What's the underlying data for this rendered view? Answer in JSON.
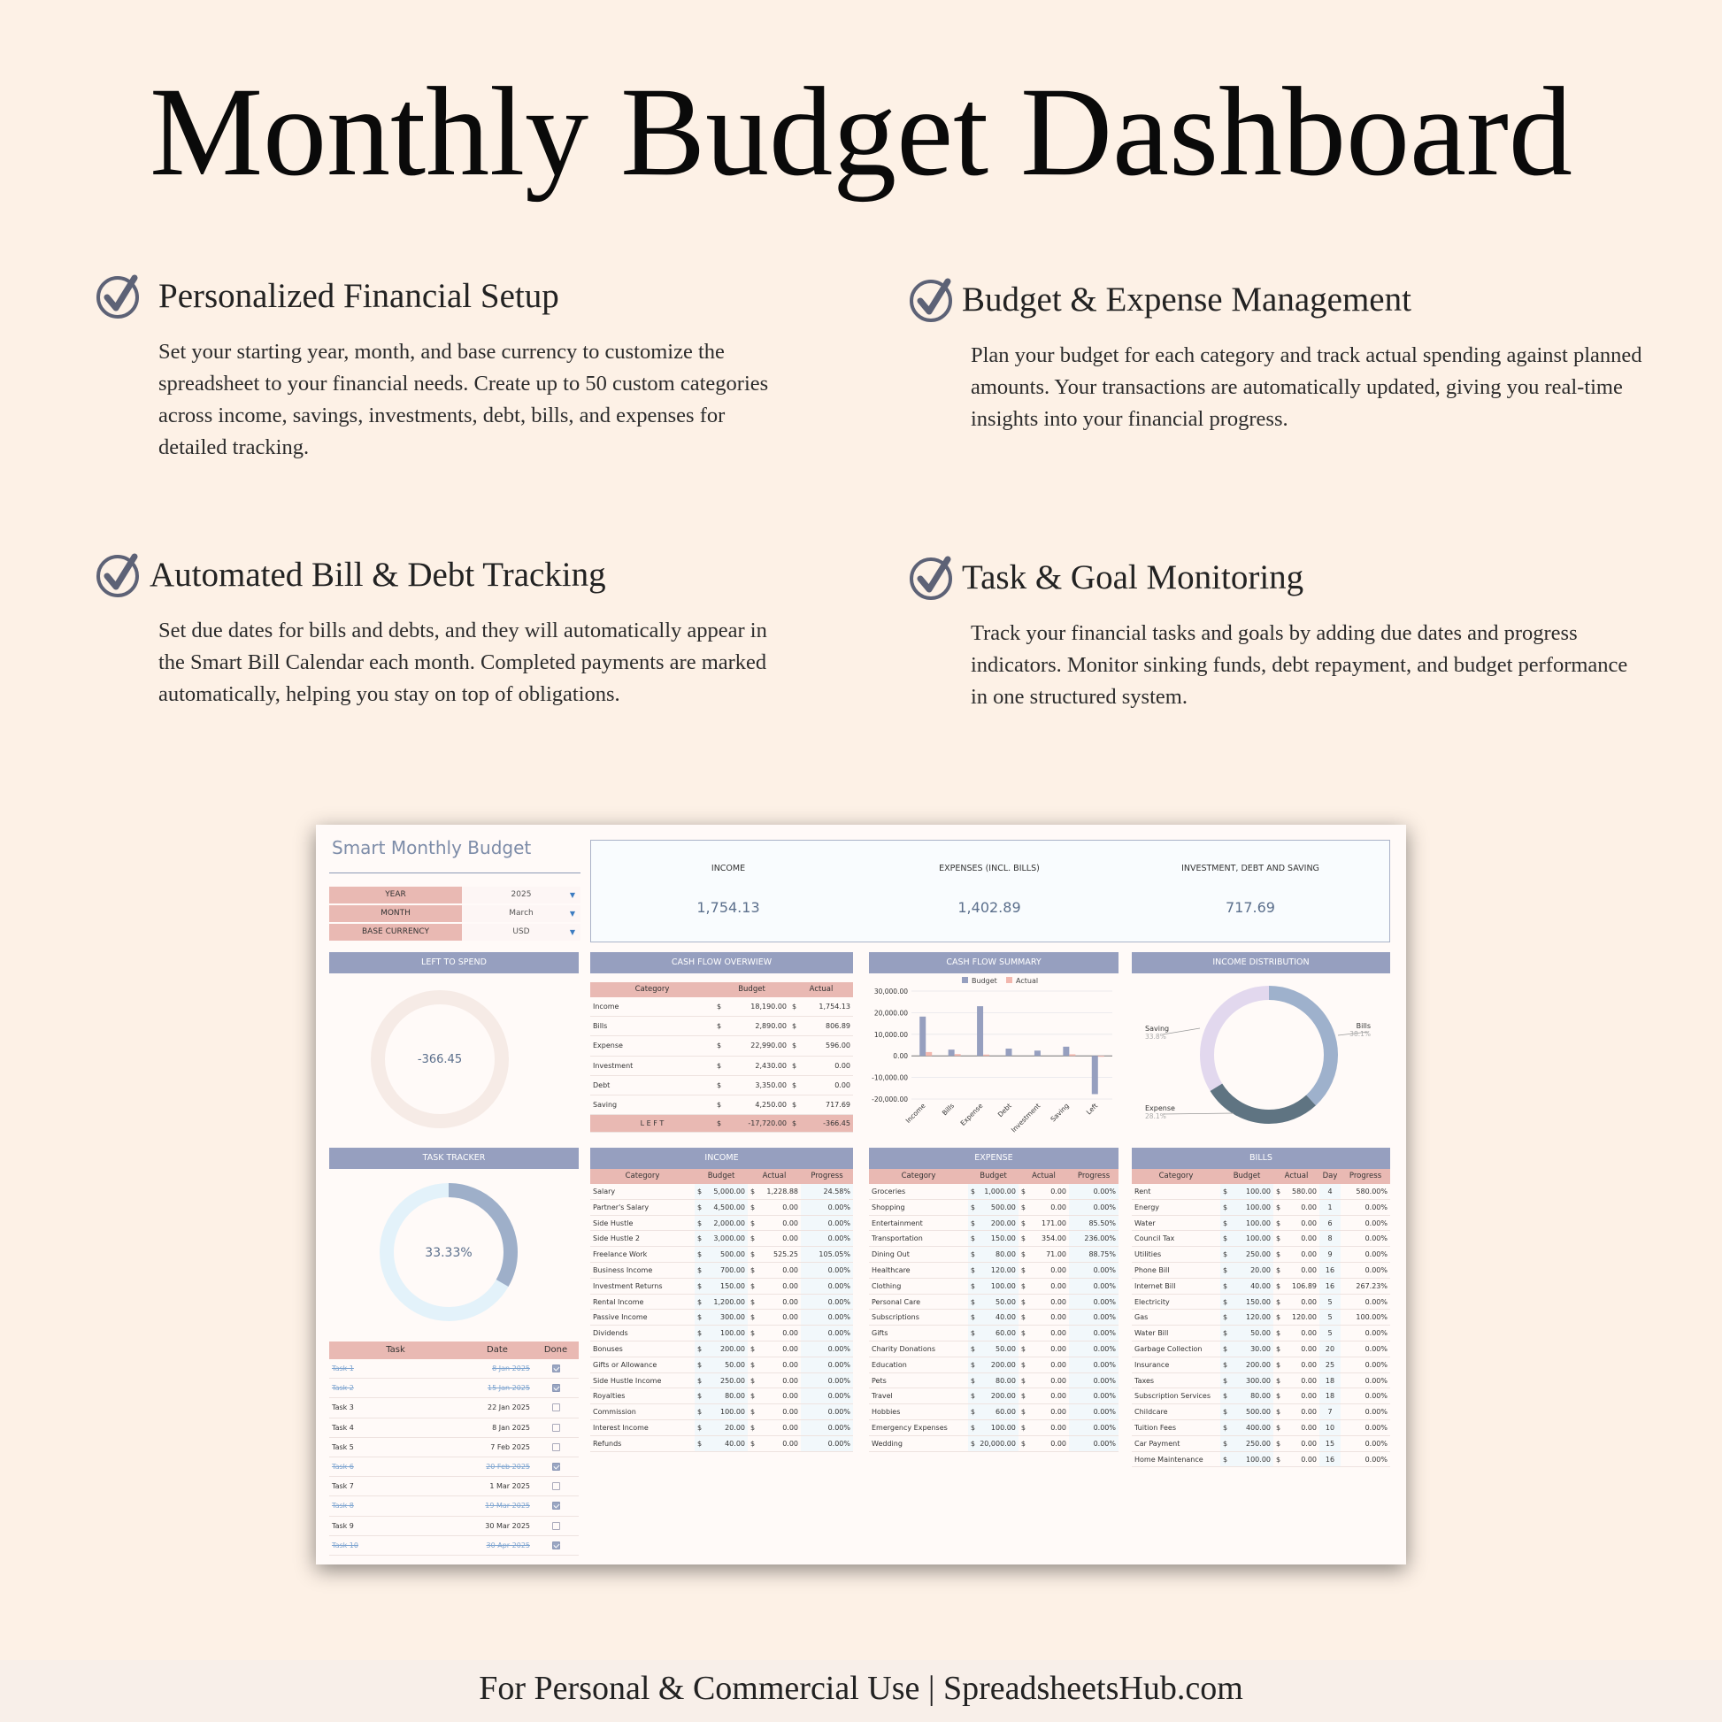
{
  "page": {
    "title": "Monthly Budget Dashboard",
    "footer": "For Personal & Commercial Use  |  SpreadsheetsHub.com"
  },
  "features": [
    {
      "title": "Personalized Financial Setup",
      "text": "Set your starting year, month, and base currency to customize the spreadsheet to your financial needs. Create up to 50 custom categories across income, savings, investments, debt, bills, and expenses for detailed tracking."
    },
    {
      "title": "Budget & Expense Management",
      "text": "Plan your budget for each category and track actual spending against planned amounts. Your transactions are automatically updated, giving you real-time insights into your financial progress."
    },
    {
      "title": "Automated Bill & Debt Tracking",
      "text": "Set due dates for bills and debts, and they will automatically appear in the Smart Bill Calendar each month. Completed payments are marked automatically, helping you stay on top of obligations."
    },
    {
      "title": "Task & Goal Monitoring",
      "text": "Track your financial tasks and goals by adding due dates and progress indicators. Monitor sinking funds, debt repayment, and budget performance in one structured system."
    }
  ],
  "dashboard": {
    "title": "Smart Monthly Budget",
    "settings": [
      {
        "label": "YEAR",
        "value": "2025"
      },
      {
        "label": "MONTH",
        "value": "March"
      },
      {
        "label": "BASE  CURRENCY",
        "value": "USD"
      }
    ],
    "kpis": [
      {
        "label": "INCOME",
        "value": "1,754.13"
      },
      {
        "label": "EXPENSES (INCL. BILLS)",
        "value": "1,402.89"
      },
      {
        "label": "INVESTMENT, DEBT AND SAVING",
        "value": "717.69"
      }
    ],
    "colors": {
      "header": "#969fbf",
      "pink": "#e9b9b3",
      "accent": "#5b6f8c",
      "ring_dark": "#5f7482",
      "ring_light": "#9eb1cc",
      "ring_lavender": "#e2d8ee"
    },
    "left_to_spend": {
      "header": "LEFT TO SPEND",
      "value": "-366.45"
    },
    "task_tracker": {
      "header": "TASK TRACKER",
      "percent_label": "33.33%",
      "percent": 33.33,
      "columns": [
        "Task",
        "Date",
        "Done"
      ],
      "rows": [
        {
          "task": "Task 1",
          "date": "8 Jan 2025",
          "done": true
        },
        {
          "task": "Task 2",
          "date": "15 Jan 2025",
          "done": true
        },
        {
          "task": "Task 3",
          "date": "22 Jan 2025",
          "done": false
        },
        {
          "task": "Task 4",
          "date": "8 Jan 2025",
          "done": false
        },
        {
          "task": "Task 5",
          "date": "7 Feb 2025",
          "done": false
        },
        {
          "task": "Task 6",
          "date": "20 Feb 2025",
          "done": true
        },
        {
          "task": "Task 7",
          "date": "1 Mar 2025",
          "done": false
        },
        {
          "task": "Task 8",
          "date": "19 Mar 2025",
          "done": true
        },
        {
          "task": "Task 9",
          "date": "30 Mar 2025",
          "done": false
        },
        {
          "task": "Task 10",
          "date": "30 Apr 2025",
          "done": true
        }
      ]
    },
    "cash_flow_overview": {
      "header": "CASH FLOW OVERWIEW",
      "columns": [
        "Category",
        "Budget",
        "Actual"
      ],
      "rows": [
        {
          "category": "Income",
          "budget": "18,190.00",
          "actual": "1,754.13"
        },
        {
          "category": "Bills",
          "budget": "2,890.00",
          "actual": "806.89"
        },
        {
          "category": "Expense",
          "budget": "22,990.00",
          "actual": "596.00"
        },
        {
          "category": "Investment",
          "budget": "2,430.00",
          "actual": "0.00"
        },
        {
          "category": "Debt",
          "budget": "3,350.00",
          "actual": "0.00"
        },
        {
          "category": "Saving",
          "budget": "4,250.00",
          "actual": "717.69"
        }
      ],
      "total": {
        "category": "L E F T",
        "budget": "-17,720.00",
        "actual": "-366.45"
      }
    },
    "cash_flow_summary": {
      "header": "CASH FLOW SUMMARY"
    },
    "income_distribution": {
      "header": "INCOME DISTRIBUTION"
    },
    "income": {
      "header": "INCOME",
      "columns": [
        "Category",
        "Budget",
        "Actual",
        "Progress"
      ],
      "rows": [
        [
          "Salary",
          "5,000.00",
          "1,228.88",
          "24.58%"
        ],
        [
          "Partner's Salary",
          "4,500.00",
          "0.00",
          "0.00%"
        ],
        [
          "Side Hustle",
          "2,000.00",
          "0.00",
          "0.00%"
        ],
        [
          "Side Hustle 2",
          "3,000.00",
          "0.00",
          "0.00%"
        ],
        [
          "Freelance Work",
          "500.00",
          "525.25",
          "105.05%"
        ],
        [
          "Business Income",
          "700.00",
          "0.00",
          "0.00%"
        ],
        [
          "Investment Returns",
          "150.00",
          "0.00",
          "0.00%"
        ],
        [
          "Rental Income",
          "1,200.00",
          "0.00",
          "0.00%"
        ],
        [
          "Passive Income",
          "300.00",
          "0.00",
          "0.00%"
        ],
        [
          "Dividends",
          "100.00",
          "0.00",
          "0.00%"
        ],
        [
          "Bonuses",
          "200.00",
          "0.00",
          "0.00%"
        ],
        [
          "Gifts or Allowance",
          "50.00",
          "0.00",
          "0.00%"
        ],
        [
          "Side Hustle Income",
          "250.00",
          "0.00",
          "0.00%"
        ],
        [
          "Royalties",
          "80.00",
          "0.00",
          "0.00%"
        ],
        [
          "Commission",
          "100.00",
          "0.00",
          "0.00%"
        ],
        [
          "Interest Income",
          "20.00",
          "0.00",
          "0.00%"
        ],
        [
          "Refunds",
          "40.00",
          "0.00",
          "0.00%"
        ]
      ]
    },
    "expense": {
      "header": "EXPENSE",
      "columns": [
        "Category",
        "Budget",
        "Actual",
        "Progress"
      ],
      "rows": [
        [
          "Groceries",
          "1,000.00",
          "0.00",
          "0.00%"
        ],
        [
          "Shopping",
          "500.00",
          "0.00",
          "0.00%"
        ],
        [
          "Entertainment",
          "200.00",
          "171.00",
          "85.50%"
        ],
        [
          "Transportation",
          "150.00",
          "354.00",
          "236.00%"
        ],
        [
          "Dining Out",
          "80.00",
          "71.00",
          "88.75%"
        ],
        [
          "Healthcare",
          "120.00",
          "0.00",
          "0.00%"
        ],
        [
          "Clothing",
          "100.00",
          "0.00",
          "0.00%"
        ],
        [
          "Personal Care",
          "50.00",
          "0.00",
          "0.00%"
        ],
        [
          "Subscriptions",
          "40.00",
          "0.00",
          "0.00%"
        ],
        [
          "Gifts",
          "60.00",
          "0.00",
          "0.00%"
        ],
        [
          "Charity Donations",
          "50.00",
          "0.00",
          "0.00%"
        ],
        [
          "Education",
          "200.00",
          "0.00",
          "0.00%"
        ],
        [
          "Pets",
          "80.00",
          "0.00",
          "0.00%"
        ],
        [
          "Travel",
          "200.00",
          "0.00",
          "0.00%"
        ],
        [
          "Hobbies",
          "60.00",
          "0.00",
          "0.00%"
        ],
        [
          "Emergency Expenses",
          "100.00",
          "0.00",
          "0.00%"
        ],
        [
          "Wedding",
          "20,000.00",
          "0.00",
          "0.00%"
        ]
      ]
    },
    "bills": {
      "header": "BILLS",
      "columns": [
        "Category",
        "Budget",
        "Actual",
        "Day",
        "Progress"
      ],
      "rows": [
        [
          "Rent",
          "100.00",
          "580.00",
          "4",
          "580.00%"
        ],
        [
          "Energy",
          "100.00",
          "0.00",
          "1",
          "0.00%"
        ],
        [
          "Water",
          "100.00",
          "0.00",
          "6",
          "0.00%"
        ],
        [
          "Council Tax",
          "100.00",
          "0.00",
          "8",
          "0.00%"
        ],
        [
          "Utilities",
          "250.00",
          "0.00",
          "9",
          "0.00%"
        ],
        [
          "Phone Bill",
          "20.00",
          "0.00",
          "16",
          "0.00%"
        ],
        [
          "Internet Bill",
          "40.00",
          "106.89",
          "16",
          "267.23%"
        ],
        [
          "Electricity",
          "150.00",
          "0.00",
          "5",
          "0.00%"
        ],
        [
          "Gas",
          "120.00",
          "120.00",
          "5",
          "100.00%"
        ],
        [
          "Water Bill",
          "50.00",
          "0.00",
          "5",
          "0.00%"
        ],
        [
          "Garbage Collection",
          "30.00",
          "0.00",
          "20",
          "0.00%"
        ],
        [
          "Insurance",
          "200.00",
          "0.00",
          "25",
          "0.00%"
        ],
        [
          "Taxes",
          "300.00",
          "0.00",
          "18",
          "0.00%"
        ],
        [
          "Subscription Services",
          "80.00",
          "0.00",
          "18",
          "0.00%"
        ],
        [
          "Childcare",
          "500.00",
          "0.00",
          "7",
          "0.00%"
        ],
        [
          "Tuition Fees",
          "400.00",
          "0.00",
          "10",
          "0.00%"
        ],
        [
          "Car Payment",
          "250.00",
          "0.00",
          "15",
          "0.00%"
        ],
        [
          "Home Maintenance",
          "100.00",
          "0.00",
          "16",
          "0.00%"
        ]
      ]
    }
  },
  "chart_data": [
    {
      "type": "bar",
      "title": "CASH FLOW SUMMARY",
      "categories": [
        "Income",
        "Bills",
        "Expense",
        "Debt",
        "Investment",
        "Saving",
        "Left"
      ],
      "series": [
        {
          "name": "Budget",
          "values": [
            18190,
            2890,
            22990,
            3350,
            2430,
            4250,
            -17720
          ],
          "color": "#969fbf"
        },
        {
          "name": "Actual",
          "values": [
            1754.13,
            806.89,
            596,
            0,
            0,
            717.69,
            -366.45
          ],
          "color": "#f2b7ae"
        }
      ],
      "ylim": [
        -20000,
        30000
      ],
      "yticks": [
        "30,000.00",
        "20,000.00",
        "10,000.00",
        "0.00",
        "-10,000.00",
        "-20,000.00"
      ],
      "legend": "top"
    },
    {
      "type": "pie",
      "title": "INCOME DISTRIBUTION",
      "labels": [
        "Bills",
        "Expense",
        "Saving"
      ],
      "values": [
        38.1,
        28.1,
        33.8
      ],
      "value_labels": [
        "38.1%",
        "28.1%",
        "33.8%"
      ],
      "colors": [
        "#9eb1cc",
        "#5f7482",
        "#e2d8ee"
      ]
    }
  ]
}
